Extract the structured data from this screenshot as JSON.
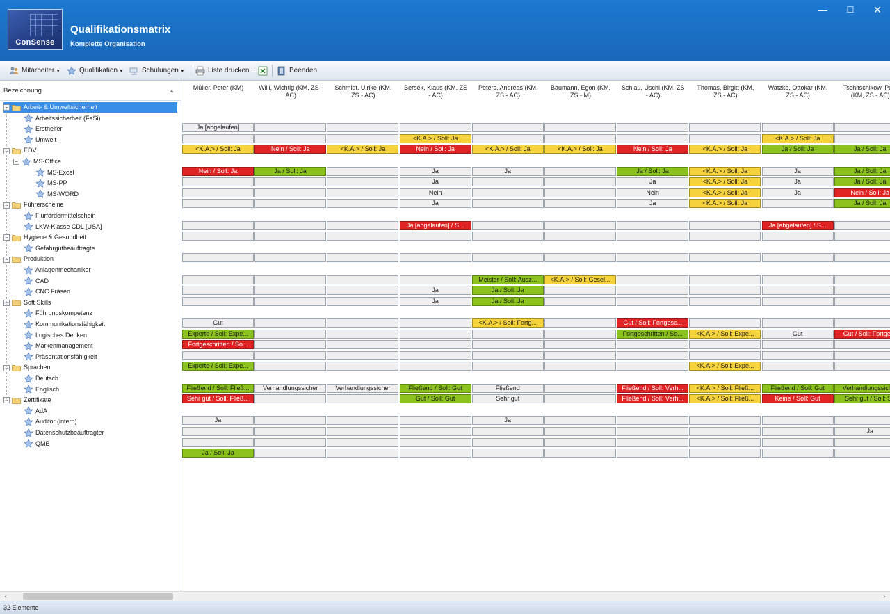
{
  "window": {
    "title": "Qualifikationsmatrix",
    "subtitle": "Komplette Organisation",
    "logo_text": "ConSense",
    "minimize": "—",
    "maximize": "☐",
    "close": "✕"
  },
  "toolbar": {
    "mitarbeiter": "Mitarbeiter",
    "qualifikation": "Qualifikation",
    "schulungen": "Schulungen",
    "liste_drucken": "Liste drucken...",
    "beenden": "Beenden"
  },
  "tree": {
    "header": "Bezeichnung",
    "sort_icon": "▲",
    "nodes": [
      {
        "label": "Arbeit- & Umweltsicherheit",
        "type": "folder",
        "level": 0,
        "selected": true
      },
      {
        "label": "Arbeitssicherheit (FaSi)",
        "type": "leaf",
        "level": 1
      },
      {
        "label": "Ersthelfer",
        "type": "leaf",
        "level": 1
      },
      {
        "label": "Umwelt",
        "type": "leaf",
        "level": 1
      },
      {
        "label": "EDV",
        "type": "folder",
        "level": 0
      },
      {
        "label": "MS-Office",
        "type": "subfolder",
        "level": 1
      },
      {
        "label": "MS-Excel",
        "type": "leaf",
        "level": 2
      },
      {
        "label": "MS-PP",
        "type": "leaf",
        "level": 2
      },
      {
        "label": "MS-WORD",
        "type": "leaf",
        "level": 2
      },
      {
        "label": "Führerscheine",
        "type": "folder",
        "level": 0
      },
      {
        "label": "Flurfördermittelschein",
        "type": "leaf",
        "level": 1
      },
      {
        "label": "LKW-Klasse CDL [USA]",
        "type": "leaf",
        "level": 1
      },
      {
        "label": "Hygiene & Gesundheit",
        "type": "folder",
        "level": 0
      },
      {
        "label": "Gefahrgutbeauftragte",
        "type": "leaf",
        "level": 1
      },
      {
        "label": "Produktion",
        "type": "folder",
        "level": 0
      },
      {
        "label": "Anlagenmechaniker",
        "type": "leaf",
        "level": 1
      },
      {
        "label": "CAD",
        "type": "leaf",
        "level": 1
      },
      {
        "label": "CNC Fräsen",
        "type": "leaf",
        "level": 1
      },
      {
        "label": "Soft Skills",
        "type": "folder",
        "level": 0
      },
      {
        "label": "Führungskompetenz",
        "type": "leaf",
        "level": 1
      },
      {
        "label": "Kommunikationsfähigkeit",
        "type": "leaf",
        "level": 1
      },
      {
        "label": "Logisches Denken",
        "type": "leaf",
        "level": 1
      },
      {
        "label": "Markenmanagement",
        "type": "leaf",
        "level": 1
      },
      {
        "label": "Präsentationsfähigkeit",
        "type": "leaf",
        "level": 1
      },
      {
        "label": "Sprachen",
        "type": "folder",
        "level": 0
      },
      {
        "label": "Deutsch",
        "type": "leaf",
        "level": 1
      },
      {
        "label": "Englisch",
        "type": "leaf",
        "level": 1
      },
      {
        "label": "Zertifikate",
        "type": "folder",
        "level": 0
      },
      {
        "label": "AdA",
        "type": "leaf",
        "level": 1
      },
      {
        "label": "Auditor (intern)",
        "type": "leaf",
        "level": 1
      },
      {
        "label": "Datenschutzbeauftragter",
        "type": "leaf",
        "level": 1
      },
      {
        "label": "QMB",
        "type": "leaf",
        "level": 1
      }
    ]
  },
  "columns": [
    "Müller, Peter (KM)",
    "Willi, Wichtig (KM, ZS - AC)",
    "Schmidt, Ulrike (KM, ZS - AC)",
    "Bersek, Klaus (KM, ZS - AC)",
    "Peters, Andreas (KM, ZS - AC)",
    "Baumann, Egon (KM, ZS - M)",
    "Schiau, Uschi (KM, ZS - AC)",
    "Thomas, Birgitt (KM, ZS - AC)",
    "Watzke, Ottokar (KM, ZS - AC)",
    "Tschitschikow, Pa... (KM, ZS - AC)"
  ],
  "rows": [
    null,
    [
      {
        "t": "Ja [abgelaufen]",
        "c": ""
      },
      {
        "t": "",
        "c": ""
      },
      {
        "t": "",
        "c": ""
      },
      {
        "t": "",
        "c": ""
      },
      {
        "t": "",
        "c": ""
      },
      {
        "t": "",
        "c": ""
      },
      {
        "t": "",
        "c": ""
      },
      {
        "t": "",
        "c": ""
      },
      {
        "t": "",
        "c": ""
      },
      {
        "t": "",
        "c": ""
      }
    ],
    [
      {
        "t": "",
        "c": ""
      },
      {
        "t": "",
        "c": ""
      },
      {
        "t": "",
        "c": ""
      },
      {
        "t": "<K.A.> / Soll: Ja",
        "c": "yel"
      },
      {
        "t": "",
        "c": ""
      },
      {
        "t": "",
        "c": ""
      },
      {
        "t": "",
        "c": ""
      },
      {
        "t": "",
        "c": ""
      },
      {
        "t": "<K.A.> / Soll: Ja",
        "c": "yel"
      },
      {
        "t": "",
        "c": ""
      }
    ],
    [
      {
        "t": "<K.A.> / Soll: Ja",
        "c": "yel"
      },
      {
        "t": "Nein / Soll: Ja",
        "c": "red"
      },
      {
        "t": "<K.A.> / Soll: Ja",
        "c": "yel"
      },
      {
        "t": "Nein / Soll: Ja",
        "c": "red"
      },
      {
        "t": "<K.A.> / Soll: Ja",
        "c": "yel"
      },
      {
        "t": "<K.A.> / Soll: Ja",
        "c": "yel"
      },
      {
        "t": "Nein / Soll: Ja",
        "c": "red"
      },
      {
        "t": "<K.A.> / Soll: Ja",
        "c": "yel"
      },
      {
        "t": "Ja / Soll: Ja",
        "c": "grn"
      },
      {
        "t": "Ja / Soll: Ja",
        "c": "grn"
      }
    ],
    null,
    [
      {
        "t": "Nein / Soll: Ja",
        "c": "red"
      },
      {
        "t": "Ja / Soll: Ja",
        "c": "grn"
      },
      {
        "t": "",
        "c": ""
      },
      {
        "t": "Ja",
        "c": ""
      },
      {
        "t": "Ja",
        "c": ""
      },
      {
        "t": "",
        "c": ""
      },
      {
        "t": "Ja / Soll: Ja",
        "c": "grn"
      },
      {
        "t": "<K.A.> / Soll: Ja",
        "c": "yel"
      },
      {
        "t": "Ja",
        "c": ""
      },
      {
        "t": "Ja / Soll: Ja",
        "c": "grn"
      }
    ],
    [
      {
        "t": "",
        "c": ""
      },
      {
        "t": "",
        "c": ""
      },
      {
        "t": "",
        "c": ""
      },
      {
        "t": "Ja",
        "c": ""
      },
      {
        "t": "",
        "c": ""
      },
      {
        "t": "",
        "c": ""
      },
      {
        "t": "Ja",
        "c": ""
      },
      {
        "t": "<K.A.> / Soll: Ja",
        "c": "yel"
      },
      {
        "t": "Ja",
        "c": ""
      },
      {
        "t": "Ja / Soll: Ja",
        "c": "grn"
      }
    ],
    [
      {
        "t": "",
        "c": ""
      },
      {
        "t": "",
        "c": ""
      },
      {
        "t": "",
        "c": ""
      },
      {
        "t": "Nein",
        "c": ""
      },
      {
        "t": "",
        "c": ""
      },
      {
        "t": "",
        "c": ""
      },
      {
        "t": "Nein",
        "c": ""
      },
      {
        "t": "<K.A.> / Soll: Ja",
        "c": "yel"
      },
      {
        "t": "Ja",
        "c": ""
      },
      {
        "t": "Nein / Soll: Ja",
        "c": "red"
      }
    ],
    [
      {
        "t": "",
        "c": ""
      },
      {
        "t": "",
        "c": ""
      },
      {
        "t": "",
        "c": ""
      },
      {
        "t": "Ja",
        "c": ""
      },
      {
        "t": "",
        "c": ""
      },
      {
        "t": "",
        "c": ""
      },
      {
        "t": "Ja",
        "c": ""
      },
      {
        "t": "<K.A.> / Soll: Ja",
        "c": "yel"
      },
      {
        "t": "",
        "c": ""
      },
      {
        "t": "Ja / Soll: Ja",
        "c": "grn"
      }
    ],
    null,
    [
      {
        "t": "",
        "c": ""
      },
      {
        "t": "",
        "c": ""
      },
      {
        "t": "",
        "c": ""
      },
      {
        "t": "Ja [abgelaufen] / S...",
        "c": "red"
      },
      {
        "t": "",
        "c": ""
      },
      {
        "t": "",
        "c": ""
      },
      {
        "t": "",
        "c": ""
      },
      {
        "t": "",
        "c": ""
      },
      {
        "t": "Ja [abgelaufen] / S...",
        "c": "red"
      },
      {
        "t": "",
        "c": ""
      }
    ],
    [
      {
        "t": "",
        "c": ""
      },
      {
        "t": "",
        "c": ""
      },
      {
        "t": "",
        "c": ""
      },
      {
        "t": "",
        "c": ""
      },
      {
        "t": "",
        "c": ""
      },
      {
        "t": "",
        "c": ""
      },
      {
        "t": "",
        "c": ""
      },
      {
        "t": "",
        "c": ""
      },
      {
        "t": "",
        "c": ""
      },
      {
        "t": "",
        "c": ""
      }
    ],
    null,
    [
      {
        "t": "",
        "c": ""
      },
      {
        "t": "",
        "c": ""
      },
      {
        "t": "",
        "c": ""
      },
      {
        "t": "",
        "c": ""
      },
      {
        "t": "",
        "c": ""
      },
      {
        "t": "",
        "c": ""
      },
      {
        "t": "",
        "c": ""
      },
      {
        "t": "",
        "c": ""
      },
      {
        "t": "",
        "c": ""
      },
      {
        "t": "",
        "c": ""
      }
    ],
    null,
    [
      {
        "t": "",
        "c": ""
      },
      {
        "t": "",
        "c": ""
      },
      {
        "t": "",
        "c": ""
      },
      {
        "t": "",
        "c": ""
      },
      {
        "t": "Meister / Soll: Ausz...",
        "c": "grn"
      },
      {
        "t": "<K.A.> / Soll: Gesel...",
        "c": "yel"
      },
      {
        "t": "",
        "c": ""
      },
      {
        "t": "",
        "c": ""
      },
      {
        "t": "",
        "c": ""
      },
      {
        "t": "",
        "c": ""
      }
    ],
    [
      {
        "t": "",
        "c": ""
      },
      {
        "t": "",
        "c": ""
      },
      {
        "t": "",
        "c": ""
      },
      {
        "t": "Ja",
        "c": ""
      },
      {
        "t": "Ja / Soll: Ja",
        "c": "grn"
      },
      {
        "t": "",
        "c": ""
      },
      {
        "t": "",
        "c": ""
      },
      {
        "t": "",
        "c": ""
      },
      {
        "t": "",
        "c": ""
      },
      {
        "t": "",
        "c": ""
      }
    ],
    [
      {
        "t": "",
        "c": ""
      },
      {
        "t": "",
        "c": ""
      },
      {
        "t": "",
        "c": ""
      },
      {
        "t": "Ja",
        "c": ""
      },
      {
        "t": "Ja / Soll: Ja",
        "c": "grn"
      },
      {
        "t": "",
        "c": ""
      },
      {
        "t": "",
        "c": ""
      },
      {
        "t": "",
        "c": ""
      },
      {
        "t": "",
        "c": ""
      },
      {
        "t": "",
        "c": ""
      }
    ],
    null,
    [
      {
        "t": "Gut",
        "c": ""
      },
      {
        "t": "",
        "c": ""
      },
      {
        "t": "",
        "c": ""
      },
      {
        "t": "",
        "c": ""
      },
      {
        "t": "<K.A.> / Soll: Fortg...",
        "c": "yel"
      },
      {
        "t": "",
        "c": ""
      },
      {
        "t": "Gut / Soll: Fortgesc...",
        "c": "red"
      },
      {
        "t": "",
        "c": ""
      },
      {
        "t": "",
        "c": ""
      },
      {
        "t": "",
        "c": ""
      }
    ],
    [
      {
        "t": "Experte / Soll: Expe...",
        "c": "grn"
      },
      {
        "t": "",
        "c": ""
      },
      {
        "t": "",
        "c": ""
      },
      {
        "t": "",
        "c": ""
      },
      {
        "t": "",
        "c": ""
      },
      {
        "t": "",
        "c": ""
      },
      {
        "t": "Fortgeschritten / So...",
        "c": "grn"
      },
      {
        "t": "<K.A.> / Soll: Expe...",
        "c": "yel"
      },
      {
        "t": "Gut",
        "c": ""
      },
      {
        "t": "Gut / Soll: Fortgesc",
        "c": "red"
      }
    ],
    [
      {
        "t": "Fortgeschritten / So...",
        "c": "red"
      },
      {
        "t": "",
        "c": ""
      },
      {
        "t": "",
        "c": ""
      },
      {
        "t": "",
        "c": ""
      },
      {
        "t": "",
        "c": ""
      },
      {
        "t": "",
        "c": ""
      },
      {
        "t": "",
        "c": ""
      },
      {
        "t": "",
        "c": ""
      },
      {
        "t": "",
        "c": ""
      },
      {
        "t": "",
        "c": ""
      }
    ],
    [
      {
        "t": "",
        "c": ""
      },
      {
        "t": "",
        "c": ""
      },
      {
        "t": "",
        "c": ""
      },
      {
        "t": "",
        "c": ""
      },
      {
        "t": "",
        "c": ""
      },
      {
        "t": "",
        "c": ""
      },
      {
        "t": "",
        "c": ""
      },
      {
        "t": "",
        "c": ""
      },
      {
        "t": "",
        "c": ""
      },
      {
        "t": "",
        "c": ""
      }
    ],
    [
      {
        "t": "Experte / Soll: Expe...",
        "c": "grn"
      },
      {
        "t": "",
        "c": ""
      },
      {
        "t": "",
        "c": ""
      },
      {
        "t": "",
        "c": ""
      },
      {
        "t": "",
        "c": ""
      },
      {
        "t": "",
        "c": ""
      },
      {
        "t": "",
        "c": ""
      },
      {
        "t": "<K.A.> / Soll: Expe...",
        "c": "yel"
      },
      {
        "t": "",
        "c": ""
      },
      {
        "t": "",
        "c": ""
      }
    ],
    null,
    [
      {
        "t": "Fließend / Soll: Fließ...",
        "c": "grn"
      },
      {
        "t": "Verhandlungssicher",
        "c": ""
      },
      {
        "t": "Verhandlungssicher",
        "c": ""
      },
      {
        "t": "Fließend / Soll: Gut",
        "c": "grn"
      },
      {
        "t": "Fließend",
        "c": ""
      },
      {
        "t": "",
        "c": ""
      },
      {
        "t": "Fließend / Soll: Verh...",
        "c": "red"
      },
      {
        "t": "<K.A.> / Soll: Fließ...",
        "c": "yel"
      },
      {
        "t": "Fließend / Soll: Gut",
        "c": "grn"
      },
      {
        "t": "Verhandlungssicher",
        "c": "grn"
      }
    ],
    [
      {
        "t": "Sehr gut / Soll: Fließ...",
        "c": "red"
      },
      {
        "t": "",
        "c": ""
      },
      {
        "t": "",
        "c": ""
      },
      {
        "t": "Gut / Soll: Gut",
        "c": "grn"
      },
      {
        "t": "Sehr gut",
        "c": ""
      },
      {
        "t": "",
        "c": ""
      },
      {
        "t": "Fließend / Soll: Verh...",
        "c": "red"
      },
      {
        "t": "<K.A.> / Soll: Fließ...",
        "c": "yel"
      },
      {
        "t": "Keine / Soll: Gut",
        "c": "red"
      },
      {
        "t": "Sehr gut / Soll: Se",
        "c": "grn"
      }
    ],
    null,
    [
      {
        "t": "Ja",
        "c": ""
      },
      {
        "t": "",
        "c": ""
      },
      {
        "t": "",
        "c": ""
      },
      {
        "t": "",
        "c": ""
      },
      {
        "t": "Ja",
        "c": ""
      },
      {
        "t": "",
        "c": ""
      },
      {
        "t": "",
        "c": ""
      },
      {
        "t": "",
        "c": ""
      },
      {
        "t": "",
        "c": ""
      },
      {
        "t": "",
        "c": ""
      }
    ],
    [
      {
        "t": "",
        "c": ""
      },
      {
        "t": "",
        "c": ""
      },
      {
        "t": "",
        "c": ""
      },
      {
        "t": "",
        "c": ""
      },
      {
        "t": "",
        "c": ""
      },
      {
        "t": "",
        "c": ""
      },
      {
        "t": "",
        "c": ""
      },
      {
        "t": "",
        "c": ""
      },
      {
        "t": "",
        "c": ""
      },
      {
        "t": "Ja",
        "c": ""
      }
    ],
    [
      {
        "t": "",
        "c": ""
      },
      {
        "t": "",
        "c": ""
      },
      {
        "t": "",
        "c": ""
      },
      {
        "t": "",
        "c": ""
      },
      {
        "t": "",
        "c": ""
      },
      {
        "t": "",
        "c": ""
      },
      {
        "t": "",
        "c": ""
      },
      {
        "t": "",
        "c": ""
      },
      {
        "t": "",
        "c": ""
      },
      {
        "t": "",
        "c": ""
      }
    ],
    [
      {
        "t": "Ja / Soll: Ja",
        "c": "grn"
      },
      {
        "t": "",
        "c": ""
      },
      {
        "t": "",
        "c": ""
      },
      {
        "t": "",
        "c": ""
      },
      {
        "t": "",
        "c": ""
      },
      {
        "t": "",
        "c": ""
      },
      {
        "t": "",
        "c": ""
      },
      {
        "t": "",
        "c": ""
      },
      {
        "t": "",
        "c": ""
      },
      {
        "t": "",
        "c": ""
      }
    ]
  ],
  "status": {
    "text": "32 Elemente"
  },
  "scroll": {
    "left": "‹",
    "right": "›"
  }
}
